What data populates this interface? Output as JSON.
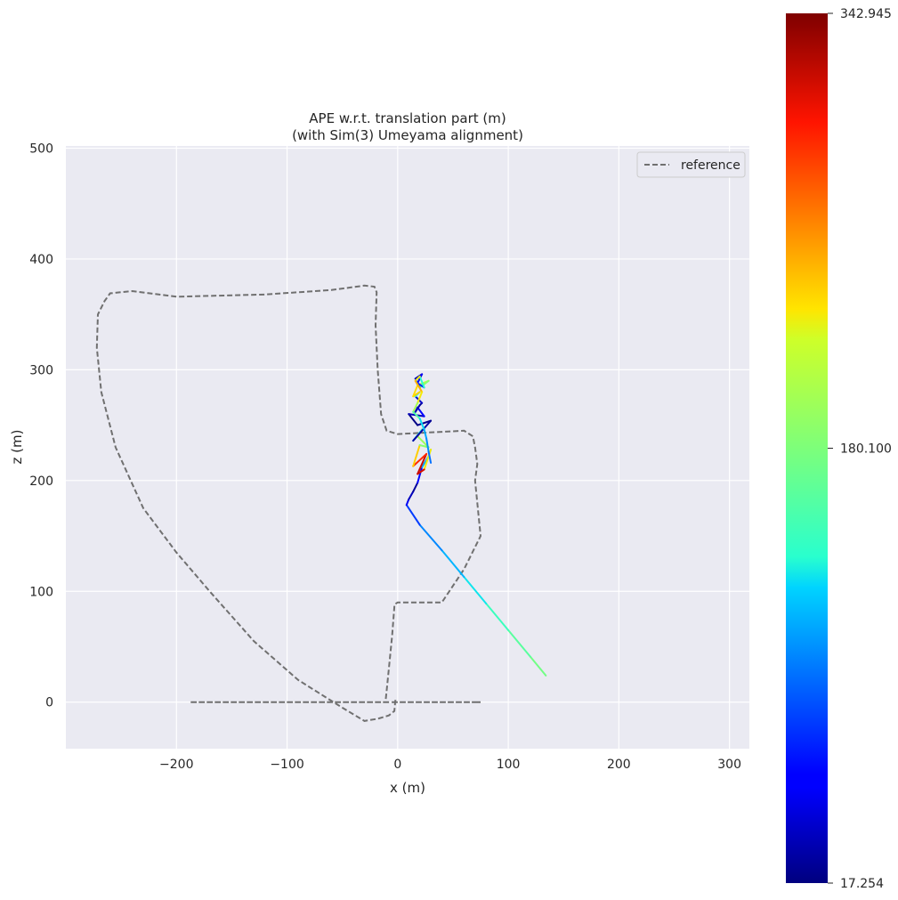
{
  "chart_data": {
    "type": "line",
    "title": "APE w.r.t. translation part (m)",
    "subtitle": "(with Sim(3) Umeyama alignment)",
    "xlabel": "x (m)",
    "ylabel": "z (m)",
    "xlim": [
      -300,
      318
    ],
    "ylim": [
      -42,
      502
    ],
    "x_ticks": [
      -200,
      -100,
      0,
      100,
      200,
      300
    ],
    "y_ticks": [
      0,
      100,
      200,
      300,
      400,
      500
    ],
    "x_tick_labels": [
      "−200",
      "−100",
      "0",
      "100",
      "200",
      "300"
    ],
    "y_tick_labels": [
      "0",
      "100",
      "200",
      "300",
      "400",
      "500"
    ],
    "grid": true,
    "legend": {
      "position": "top-right",
      "entries": [
        "reference"
      ]
    },
    "colorbar": {
      "colormap": "jet",
      "min": 17.254,
      "max": 342.945,
      "ticks": [
        17.254,
        180.1,
        342.945
      ],
      "tick_labels": [
        "17.254",
        "180.100",
        "342.945"
      ]
    },
    "series": [
      {
        "name": "reference",
        "style": "dashed",
        "color": "#707070",
        "x": [
          -2,
          -3,
          -8,
          -18,
          -30,
          -50,
          -90,
          -130,
          -170,
          -200,
          -230,
          -255,
          -268,
          -272,
          -271,
          -265,
          -260,
          -240,
          -200,
          -120,
          -60,
          -30,
          -21,
          -19,
          -20,
          -18,
          -15,
          -10,
          0,
          20,
          40,
          60,
          68,
          70,
          72,
          70,
          75,
          60,
          40,
          20,
          0,
          -3,
          -3,
          -5,
          -8,
          -10,
          -11,
          -10,
          -12,
          -14,
          -20,
          -30,
          -60,
          -100,
          -120,
          -150,
          -178,
          -182,
          -184,
          -186,
          -187,
          -188,
          -186,
          -183,
          -182,
          -182,
          -180,
          -170,
          -150,
          -120,
          -60,
          -20,
          -15,
          -10,
          -5,
          0,
          10,
          50,
          57,
          57,
          58,
          60,
          61,
          63,
          65,
          66,
          70,
          72,
          72,
          70,
          75,
          72,
          70,
          60,
          30,
          -3,
          -2,
          -2,
          -2,
          -2
        ],
        "y": [
          2,
          -8,
          -12,
          -15,
          -17,
          -5,
          20,
          55,
          100,
          135,
          175,
          230,
          280,
          320,
          350,
          362,
          369,
          371,
          366,
          368,
          372,
          376,
          375,
          370,
          340,
          300,
          260,
          245,
          242,
          243,
          244,
          245,
          240,
          230,
          215,
          200,
          150,
          120,
          90,
          90,
          90,
          88,
          86,
          60,
          30,
          10,
          0,
          0,
          0,
          0,
          0,
          0,
          0,
          0,
          0,
          0,
          0,
          0,
          0,
          0,
          0,
          0,
          0,
          0,
          0,
          0,
          0,
          0,
          0,
          0,
          0,
          0,
          0,
          0,
          0,
          0,
          0,
          0,
          0,
          0,
          0,
          0,
          0,
          0,
          0,
          0,
          0,
          0,
          0,
          0,
          0,
          0,
          0,
          0,
          0,
          0,
          0,
          0,
          0,
          0
        ]
      },
      {
        "name": "",
        "style": "colormapped",
        "x": [
          134,
          120,
          100,
          80,
          60,
          40,
          20,
          8,
          10,
          14,
          18,
          22,
          28,
          30,
          24,
          18,
          26,
          14,
          20,
          28,
          18,
          22,
          14,
          30,
          18,
          10,
          24,
          18,
          16,
          20,
          22,
          16,
          20,
          14,
          18,
          28,
          20,
          16,
          22,
          18,
          24,
          20,
          16,
          22,
          18,
          14,
          20,
          24,
          26,
          28,
          30
        ],
        "y": [
          24,
          41,
          65,
          89,
          113,
          137,
          160,
          178,
          183,
          190,
          198,
          212,
          222,
          228,
          210,
          206,
          224,
          213,
          232,
          230,
          240,
          246,
          236,
          254,
          250,
          260,
          258,
          266,
          262,
          268,
          270,
          276,
          280,
          276,
          286,
          290,
          284,
          292,
          296,
          288,
          284,
          294,
          290,
          280,
          270,
          262,
          256,
          246,
          238,
          226,
          216
        ],
        "errors": [
          180,
          170,
          155,
          140,
          125,
          110,
          95,
          60,
          40,
          30,
          20,
          100,
          130,
          160,
          300,
          330,
          310,
          280,
          200,
          170,
          220,
          240,
          30,
          25,
          20,
          18,
          50,
          60,
          40,
          20,
          25,
          50,
          230,
          250,
          220,
          200,
          170,
          30,
          40,
          60,
          80,
          200,
          260,
          240,
          220,
          180,
          140,
          120,
          110,
          100,
          90
        ]
      }
    ]
  }
}
